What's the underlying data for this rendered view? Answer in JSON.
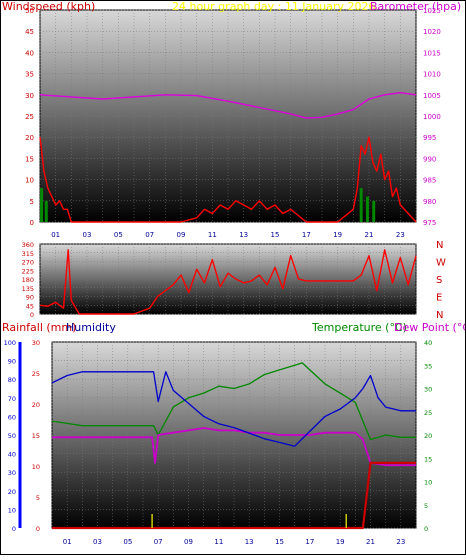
{
  "title": "24 hour graph day : 11 January 2026",
  "panels": {
    "wind_baro": {
      "left_title": "Windspeed (kph)",
      "right_title": "Barometer (hpa)",
      "left_ticks": [
        "50",
        "45",
        "40",
        "35",
        "30",
        "25",
        "20",
        "15",
        "10",
        "5",
        "0"
      ],
      "right_ticks": [
        "1025",
        "1020",
        "1015",
        "1010",
        "1005",
        "1000",
        "995",
        "990",
        "985",
        "980",
        "975"
      ]
    },
    "direction": {
      "left_ticks": [
        "360",
        "315",
        "270",
        "225",
        "180",
        "135",
        "90",
        "45",
        "0"
      ],
      "compass": [
        "N",
        "W",
        "S",
        "E",
        "N"
      ]
    },
    "rain_temp": {
      "rainfall_title": "Rainfall (mm)",
      "humidity_title": "Humidity",
      "temperature_title": "Temperature (°C)",
      "dewpoint_title": "Dew Point (°C)",
      "humidity_ticks": [
        "100",
        "90",
        "80",
        "70",
        "60",
        "50",
        "40",
        "30",
        "20",
        "10",
        "0"
      ],
      "rain_ticks": [
        "30",
        "25",
        "20",
        "15",
        "10",
        "5",
        "0"
      ],
      "temp_ticks": [
        "40",
        "35",
        "30",
        "25",
        "20",
        "15",
        "10",
        "5",
        "0"
      ]
    },
    "x_ticks": [
      "01",
      "03",
      "05",
      "07",
      "09",
      "11",
      "13",
      "15",
      "17",
      "19",
      "21",
      "23"
    ]
  },
  "colors": {
    "title": "#ffff00",
    "windspeed": "#ff0000",
    "barometer": "#dd00dd",
    "humidity": "#0000cc",
    "temperature": "#008800",
    "dewpoint": "#cc00cc",
    "rainfall": "#cc0000",
    "gust": "#ff0000",
    "avg_wind": "#0000cc",
    "calm_wind": "#008800"
  },
  "chart_data": [
    {
      "type": "line",
      "title": "24 hour graph day : 11 January 2026",
      "x_unit": "hour",
      "x_ticks": [
        "01",
        "03",
        "05",
        "07",
        "09",
        "11",
        "13",
        "15",
        "17",
        "19",
        "21",
        "23"
      ],
      "series": [
        {
          "name": "Barometer (hpa)",
          "axis": "right",
          "ylim": [
            975,
            1025
          ],
          "x": [
            0,
            2,
            4,
            6,
            8,
            10,
            12,
            14,
            16,
            17,
            18,
            19,
            20,
            21,
            22,
            23,
            24
          ],
          "values": [
            1005,
            1004.5,
            1004,
            1004.5,
            1005,
            1004.8,
            1003.5,
            1002,
            1000.5,
            999.5,
            999.7,
            1000.5,
            1001.5,
            1004,
            1005,
            1005.5,
            1005
          ]
        },
        {
          "name": "Windspeed (kph)",
          "axis": "left",
          "ylim": [
            0,
            50
          ],
          "x": [
            0,
            0.25,
            0.5,
            0.75,
            1,
            1.25,
            1.5,
            1.75,
            2,
            3,
            6,
            9,
            10,
            10.5,
            11,
            11.5,
            12,
            12.5,
            13,
            13.5,
            14,
            14.5,
            15,
            15.5,
            16,
            17,
            19,
            20,
            20.25,
            20.5,
            20.75,
            21,
            21.25,
            21.5,
            21.75,
            22,
            22.25,
            22.5,
            22.75,
            23,
            23.5,
            24
          ],
          "values": [
            20,
            12,
            8,
            6,
            4,
            5,
            3,
            3,
            0,
            0,
            0,
            0,
            1,
            3,
            2,
            4,
            3,
            5,
            4,
            3,
            5,
            3,
            4,
            2,
            3,
            0,
            0,
            3,
            8,
            18,
            16,
            20,
            14,
            12,
            16,
            10,
            12,
            6,
            8,
            4,
            2,
            0
          ]
        }
      ]
    },
    {
      "type": "line",
      "ylabel": "",
      "ylim": [
        0,
        360
      ],
      "series": [
        {
          "name": "",
          "x": [
            0,
            0.5,
            1,
            1.5,
            1.8,
            2,
            2.5,
            3,
            4,
            6,
            7,
            7.5,
            8,
            8.5,
            9,
            9.5,
            10,
            10.5,
            11,
            11.5,
            12,
            12.5,
            13,
            13.5,
            14,
            14.5,
            15,
            15.5,
            16,
            16.5,
            17,
            17.5,
            18,
            18.5,
            19,
            19.5,
            20,
            20.5,
            21,
            21.5,
            22,
            22.5,
            23,
            23.5,
            24
          ],
          "values": [
            45,
            40,
            60,
            30,
            330,
            70,
            0,
            0,
            0,
            0,
            30,
            90,
            120,
            150,
            200,
            110,
            230,
            160,
            280,
            140,
            210,
            180,
            160,
            170,
            200,
            150,
            240,
            130,
            300,
            180,
            170,
            170,
            170,
            170,
            170,
            170,
            170,
            200,
            300,
            120,
            330,
            160,
            290,
            150,
            300
          ]
        }
      ]
    },
    {
      "type": "line",
      "series": [
        {
          "name": "Humidity",
          "axis": "left-outer",
          "ylim": [
            0,
            100
          ],
          "x": [
            0,
            1,
            2,
            4,
            6,
            6.7,
            7,
            7.5,
            8,
            9,
            10,
            11,
            12,
            13,
            14,
            15,
            16,
            17,
            18,
            19,
            20,
            20.5,
            21,
            21.5,
            22,
            23,
            24
          ],
          "values": [
            78,
            82,
            84,
            84,
            84,
            84,
            68,
            84,
            74,
            67,
            60,
            56,
            54,
            51,
            48,
            46,
            44,
            52,
            60,
            64,
            70,
            75,
            82,
            70,
            65,
            63,
            63
          ]
        },
        {
          "name": "Temperature (°C)",
          "axis": "right",
          "ylim": [
            0,
            40
          ],
          "x": [
            0,
            1,
            2,
            4,
            6,
            6.7,
            7,
            8,
            9,
            10,
            11,
            12,
            13,
            14,
            15,
            16,
            16.5,
            17,
            18,
            19,
            20,
            20.5,
            21,
            22,
            23,
            24
          ],
          "values": [
            23,
            22.5,
            22,
            22,
            22,
            22,
            20,
            26,
            28,
            29,
            30.5,
            30,
            31,
            33,
            34,
            35,
            35.5,
            34,
            31,
            29,
            27,
            23,
            19,
            20,
            19.5,
            19.5
          ]
        },
        {
          "name": "Dew Point (°C)",
          "axis": "right",
          "ylim": [
            0,
            40
          ],
          "x": [
            0,
            1,
            2,
            4,
            6,
            6.6,
            6.8,
            7,
            8,
            9,
            10,
            11,
            12,
            13,
            14,
            15,
            16,
            17,
            18,
            19,
            20,
            20.5,
            21,
            22,
            23,
            24
          ],
          "values": [
            19.5,
            19.5,
            19.5,
            19.5,
            19.5,
            19.5,
            14,
            20,
            20.5,
            21,
            21.5,
            21,
            21,
            20.5,
            20.5,
            20,
            20,
            20,
            20.5,
            20.5,
            20.5,
            19,
            14,
            13.5,
            13.5,
            13.5
          ]
        },
        {
          "name": "Rainfall (mm)",
          "axis": "left-inner",
          "ylim": [
            0,
            30
          ],
          "x": [
            0,
            20,
            20.5,
            21,
            22,
            23,
            24
          ],
          "values": [
            0,
            0,
            0,
            10.5,
            10.5,
            10.5,
            10.5
          ]
        }
      ]
    }
  ]
}
